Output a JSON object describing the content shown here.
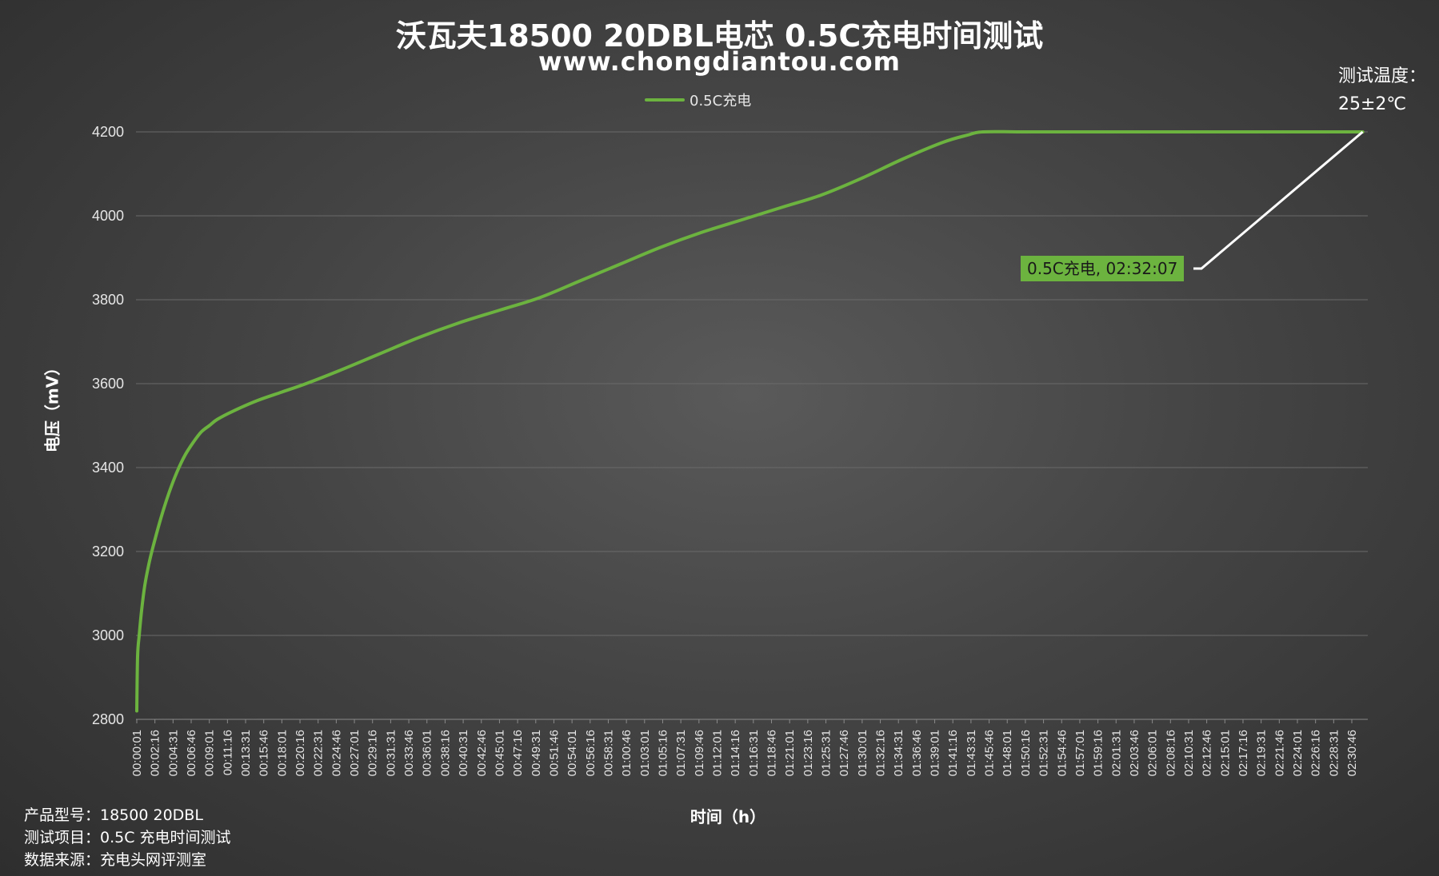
{
  "chart_data": {
    "type": "line",
    "title": "沃瓦夫18500 20DBL电芯 0.5C充电时间测试",
    "subtitle": "www.chongdiantou.com",
    "xlabel": "时间（h）",
    "ylabel": "电压（mV）",
    "ylim": [
      2800,
      4200
    ],
    "yticks": [
      2800,
      3000,
      3200,
      3400,
      3600,
      3800,
      4000,
      4200
    ],
    "grid": true,
    "legend_position": "top-center",
    "line_color": "#6cb33f",
    "x_tick_labels": [
      "00:00:01",
      "00:02:16",
      "00:04:31",
      "00:06:46",
      "00:09:01",
      "00:11:16",
      "00:13:31",
      "00:15:46",
      "00:18:01",
      "00:20:16",
      "00:22:31",
      "00:24:46",
      "00:27:01",
      "00:29:16",
      "00:31:31",
      "00:33:46",
      "00:36:01",
      "00:38:16",
      "00:40:31",
      "00:42:46",
      "00:45:01",
      "00:47:16",
      "00:49:31",
      "00:51:46",
      "00:54:01",
      "00:56:16",
      "00:58:31",
      "01:00:46",
      "01:03:01",
      "01:05:16",
      "01:07:31",
      "01:09:46",
      "01:12:01",
      "01:14:16",
      "01:16:31",
      "01:18:46",
      "01:21:01",
      "01:23:16",
      "01:25:31",
      "01:27:46",
      "01:30:01",
      "01:32:16",
      "01:34:31",
      "01:36:46",
      "01:39:01",
      "01:41:16",
      "01:43:31",
      "01:45:46",
      "01:48:01",
      "01:50:16",
      "01:52:31",
      "01:54:46",
      "01:57:01",
      "01:59:16",
      "02:01:31",
      "02:03:46",
      "02:06:01",
      "02:08:16",
      "02:10:31",
      "02:12:46",
      "02:15:01",
      "02:17:16",
      "02:19:31",
      "02:21:46",
      "02:24:01",
      "02:26:16",
      "02:28:31",
      "02:30:46"
    ],
    "series": [
      {
        "name": "0.5C充电",
        "x_minutes": [
          0,
          0.1,
          0.3,
          0.6,
          1,
          1.5,
          2,
          3,
          4,
          5,
          6,
          7,
          8,
          9,
          10,
          12,
          15,
          18,
          21,
          25,
          30,
          35,
          40,
          45,
          50,
          55,
          60,
          65,
          70,
          75,
          80,
          85,
          90,
          95,
          100,
          103,
          105,
          110,
          120,
          130,
          140,
          150,
          152.1
        ],
        "values": [
          2820,
          2950,
          3000,
          3060,
          3120,
          3170,
          3210,
          3280,
          3340,
          3390,
          3430,
          3460,
          3485,
          3500,
          3515,
          3535,
          3560,
          3580,
          3600,
          3630,
          3670,
          3710,
          3745,
          3775,
          3805,
          3845,
          3885,
          3925,
          3960,
          3990,
          4020,
          4050,
          4090,
          4135,
          4175,
          4192,
          4200,
          4200,
          4200,
          4200,
          4200,
          4200,
          4200
        ]
      }
    ],
    "annotation": {
      "text": "0.5C充电, 02:32:07",
      "x_minutes": 152.1,
      "y": 4200
    }
  },
  "temperature_note": {
    "line1": "测试温度：",
    "line2": "25±2℃"
  },
  "notes": [
    "产品型号：18500 20DBL",
    "测试项目：0.5C 充电时间测试",
    "数据来源：充电头网评测室"
  ]
}
